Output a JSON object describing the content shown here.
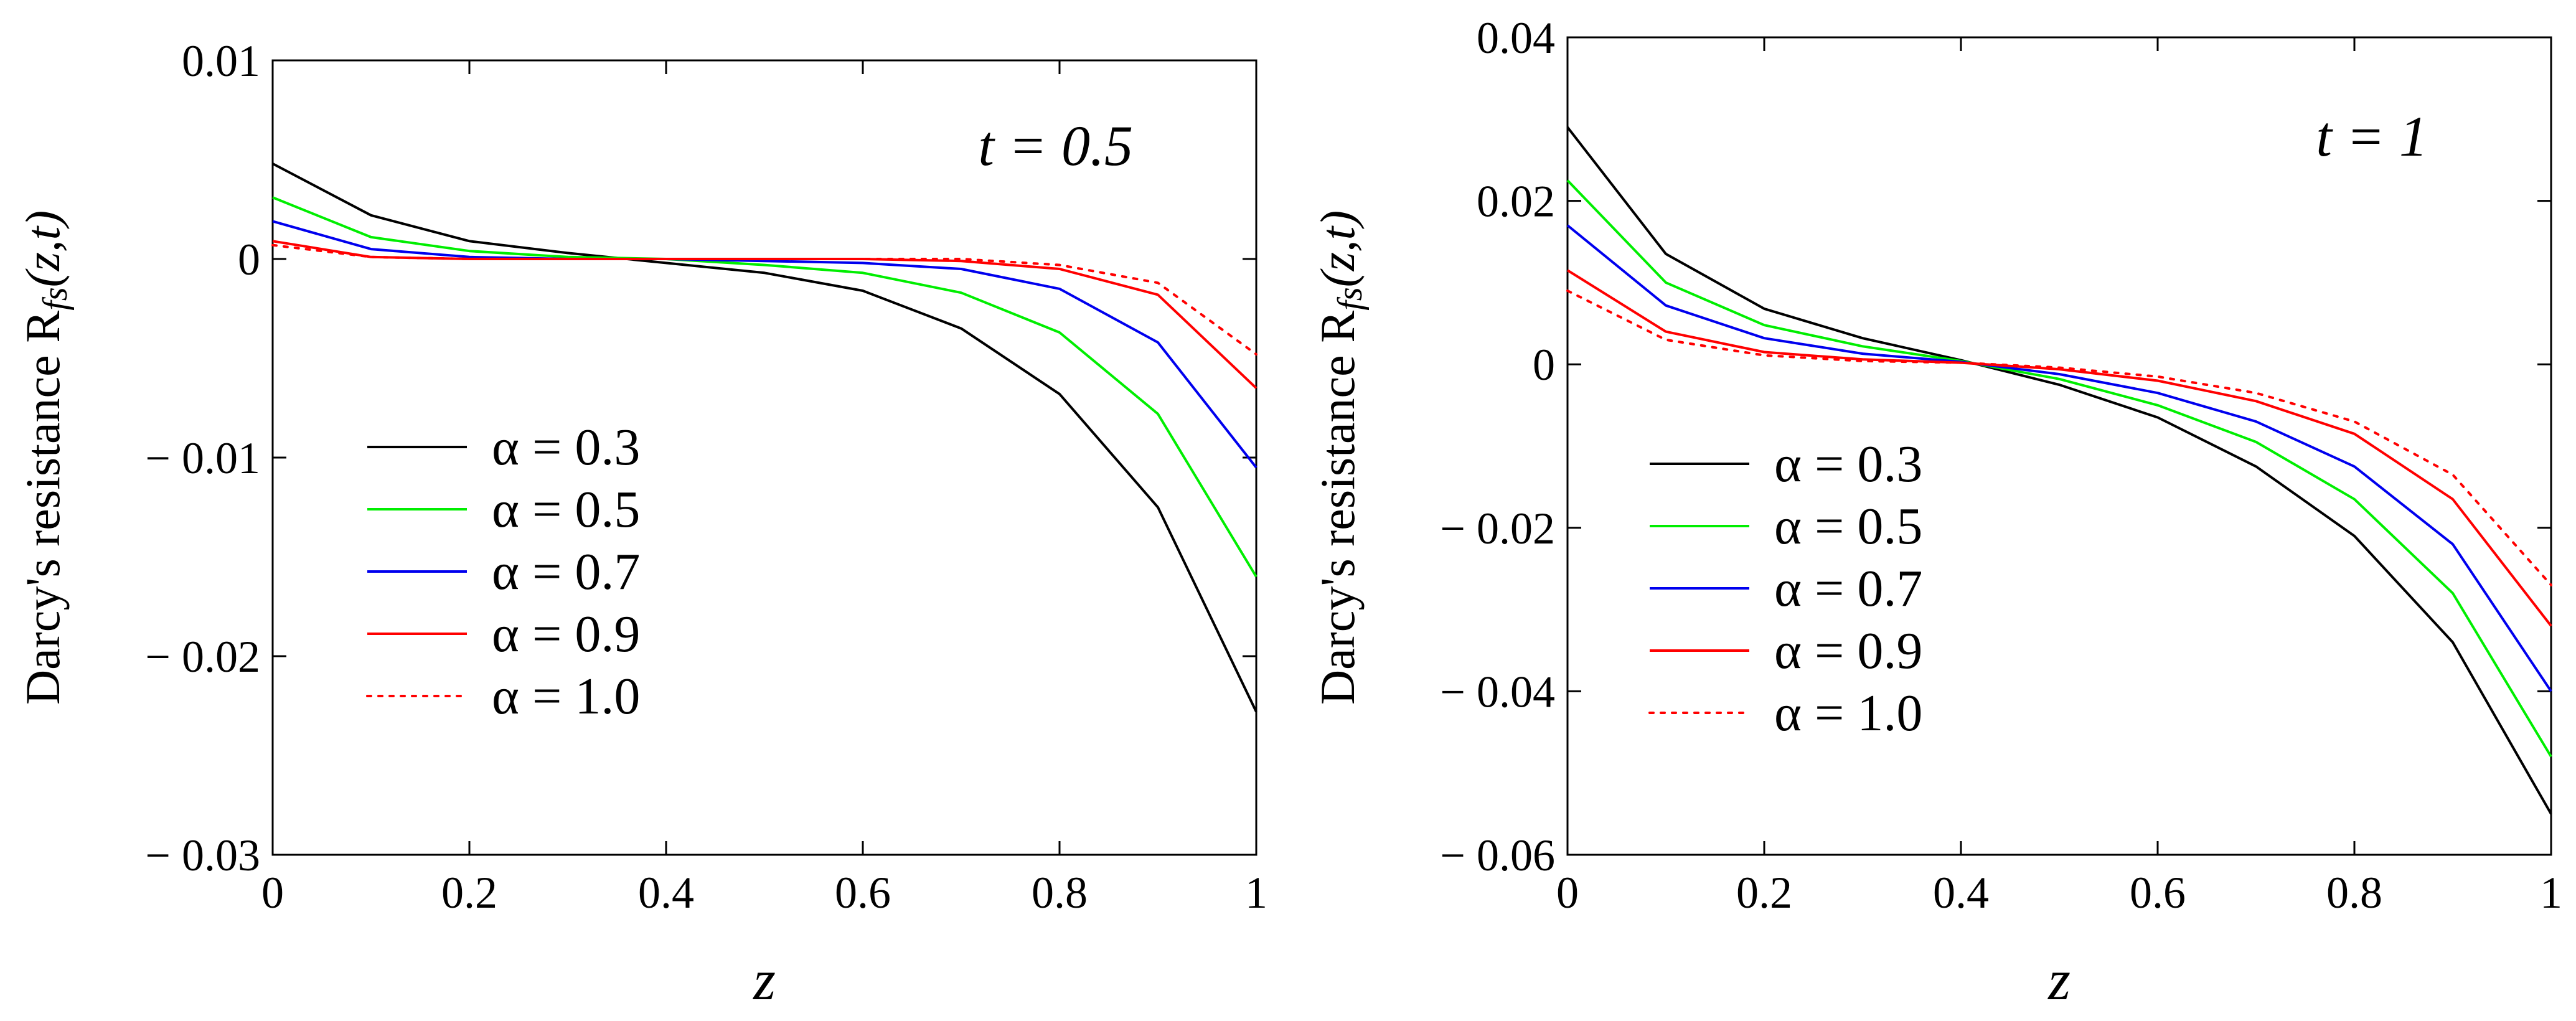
{
  "chart_data": [
    {
      "type": "line",
      "annotation": "t = 0.5",
      "xlabel": "z",
      "ylabel": "Darcy's  resistance R",
      "ylabel_sub": "fs",
      "ylabel_args": "(z,t)",
      "xlim": [
        0,
        1
      ],
      "ylim": [
        -0.03,
        0.01
      ],
      "xticks": [
        0,
        0.2,
        0.4,
        0.6,
        0.8,
        1
      ],
      "xtick_labels": [
        "0",
        "0.2",
        "0.4",
        "0.6",
        "0.8",
        "1"
      ],
      "yticks": [
        0.01,
        0,
        -0.01,
        -0.02,
        -0.03
      ],
      "ytick_labels": [
        "0.01",
        "0",
        "− 0.01",
        "− 0.02",
        "− 0.03"
      ],
      "x": [
        0,
        0.1,
        0.2,
        0.3,
        0.4,
        0.5,
        0.6,
        0.7,
        0.8,
        0.9,
        1.0
      ],
      "series": [
        {
          "name": "α = 0.3",
          "color": "#000000",
          "dash": false,
          "values": [
            0.0048,
            0.0022,
            0.0009,
            0.0003,
            -0.0002,
            -0.0007,
            -0.0016,
            -0.0035,
            -0.0068,
            -0.0125,
            -0.0228
          ]
        },
        {
          "name": "α = 0.5",
          "color": "#00ee00",
          "dash": false,
          "values": [
            0.0031,
            0.0011,
            0.0004,
            0.0001,
            0.0,
            -0.0003,
            -0.0007,
            -0.0017,
            -0.0037,
            -0.0078,
            -0.016
          ]
        },
        {
          "name": "α = 0.7",
          "color": "#0000ee",
          "dash": false,
          "values": [
            0.0019,
            0.0005,
            0.0001,
            0.0,
            0.0,
            -0.0001,
            -0.0002,
            -0.0005,
            -0.0015,
            -0.0042,
            -0.0105
          ]
        },
        {
          "name": "α = 0.9",
          "color": "#ff0000",
          "dash": false,
          "values": [
            0.0009,
            0.0001,
            0.0,
            0.0,
            0.0,
            0.0,
            0.0,
            -0.0001,
            -0.0005,
            -0.0018,
            -0.0065
          ]
        },
        {
          "name": "α = 1.0",
          "color": "#ff0000",
          "dash": true,
          "values": [
            0.0007,
            0.0001,
            0.0,
            0.0,
            0.0,
            0.0,
            0.0,
            0.0,
            -0.0003,
            -0.0012,
            -0.0048
          ]
        }
      ]
    },
    {
      "type": "line",
      "annotation": "t = 1",
      "xlabel": "z",
      "ylabel": "Darcy's  resistance R",
      "ylabel_sub": "fs",
      "ylabel_args": "(z,t)",
      "xlim": [
        0,
        1
      ],
      "ylim": [
        -0.06,
        0.04
      ],
      "xticks": [
        0,
        0.2,
        0.4,
        0.6,
        0.8,
        1
      ],
      "xtick_labels": [
        "0",
        "0.2",
        "0.4",
        "0.6",
        "0.8",
        "1"
      ],
      "yticks": [
        0.04,
        0.02,
        0,
        -0.02,
        -0.04,
        -0.06
      ],
      "ytick_labels": [
        "0.04",
        "0.02",
        "0",
        "− 0.02",
        "− 0.04",
        "− 0.06"
      ],
      "x": [
        0,
        0.1,
        0.2,
        0.3,
        0.4,
        0.5,
        0.6,
        0.7,
        0.8,
        0.9,
        1.0
      ],
      "series": [
        {
          "name": "α = 0.3",
          "color": "#000000",
          "dash": false,
          "values": [
            0.029,
            0.0135,
            0.0068,
            0.0032,
            0.0005,
            -0.0025,
            -0.0065,
            -0.0125,
            -0.021,
            -0.034,
            -0.055
          ]
        },
        {
          "name": "α = 0.5",
          "color": "#00ee00",
          "dash": false,
          "values": [
            0.0225,
            0.01,
            0.0048,
            0.0022,
            0.0004,
            -0.0018,
            -0.005,
            -0.0095,
            -0.0165,
            -0.028,
            -0.048
          ]
        },
        {
          "name": "α = 0.7",
          "color": "#0000ee",
          "dash": false,
          "values": [
            0.017,
            0.0072,
            0.0032,
            0.0013,
            0.0003,
            -0.0012,
            -0.0035,
            -0.007,
            -0.0125,
            -0.022,
            -0.04
          ]
        },
        {
          "name": "α = 0.9",
          "color": "#ff0000",
          "dash": false,
          "values": [
            0.0115,
            0.004,
            0.0015,
            0.0006,
            0.0002,
            -0.0006,
            -0.002,
            -0.0045,
            -0.0085,
            -0.0165,
            -0.032
          ]
        },
        {
          "name": "α = 1.0",
          "color": "#ff0000",
          "dash": true,
          "values": [
            0.009,
            0.003,
            0.0011,
            0.0004,
            0.0002,
            -0.0004,
            -0.0015,
            -0.0035,
            -0.007,
            -0.0135,
            -0.027
          ]
        }
      ]
    }
  ]
}
